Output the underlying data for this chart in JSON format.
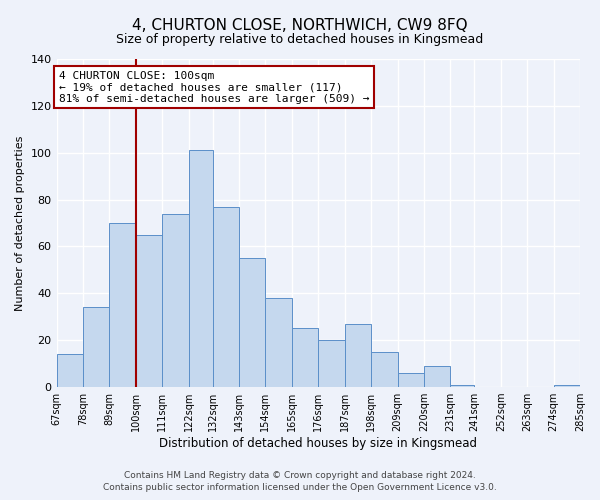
{
  "title": "4, CHURTON CLOSE, NORTHWICH, CW9 8FQ",
  "subtitle": "Size of property relative to detached houses in Kingsmead",
  "xlabel": "Distribution of detached houses by size in Kingsmead",
  "ylabel": "Number of detached properties",
  "bin_edges": [
    67,
    78,
    89,
    100,
    111,
    122,
    132,
    143,
    154,
    165,
    176,
    187,
    198,
    209,
    220,
    231,
    241,
    252,
    263,
    274,
    285
  ],
  "bin_labels": [
    "67sqm",
    "78sqm",
    "89sqm",
    "100sqm",
    "111sqm",
    "122sqm",
    "132sqm",
    "143sqm",
    "154sqm",
    "165sqm",
    "176sqm",
    "187sqm",
    "198sqm",
    "209sqm",
    "220sqm",
    "231sqm",
    "241sqm",
    "252sqm",
    "263sqm",
    "274sqm",
    "285sqm"
  ],
  "counts": [
    14,
    34,
    70,
    65,
    74,
    101,
    77,
    55,
    38,
    25,
    20,
    27,
    15,
    6,
    9,
    1,
    0,
    0,
    0,
    1
  ],
  "bar_color": "#c5d8ee",
  "bar_edge_color": "#5b8fc9",
  "vline_x": 100,
  "vline_color": "#a00000",
  "annotation_title": "4 CHURTON CLOSE: 100sqm",
  "annotation_line1": "← 19% of detached houses are smaller (117)",
  "annotation_line2": "81% of semi-detached houses are larger (509) →",
  "annotation_box_color": "white",
  "annotation_box_edge": "#a00000",
  "ylim": [
    0,
    140
  ],
  "yticks": [
    0,
    20,
    40,
    60,
    80,
    100,
    120,
    140
  ],
  "footer_line1": "Contains HM Land Registry data © Crown copyright and database right 2024.",
  "footer_line2": "Contains public sector information licensed under the Open Government Licence v3.0.",
  "bg_color": "#eef2fa"
}
